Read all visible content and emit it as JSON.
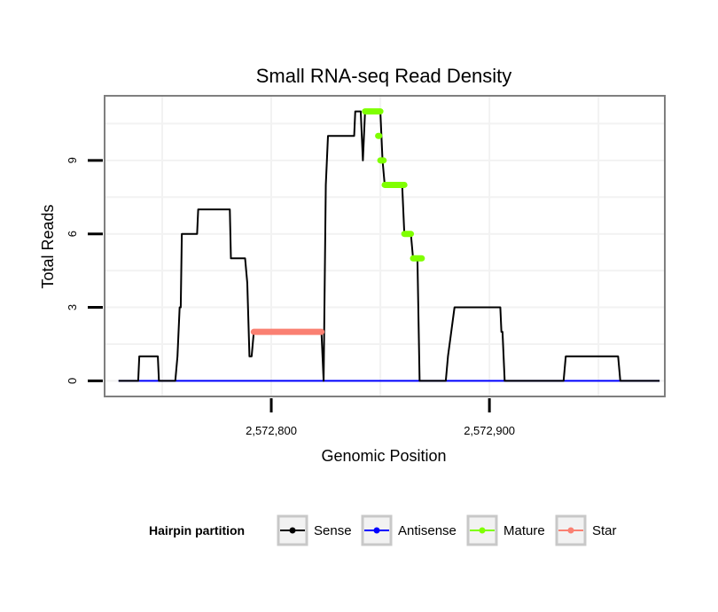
{
  "chart_data": {
    "type": "line",
    "title": "Small RNA-seq Read Density",
    "xlabel": "Genomic Position",
    "ylabel": "Total Reads",
    "xlim": [
      2572724,
      2572980
    ],
    "ylim": [
      -0.6,
      11.6
    ],
    "x_ticks": [
      2572800,
      2572900
    ],
    "x_tick_labels": [
      "2,572,800",
      "2,572,900"
    ],
    "y_ticks": [
      0,
      3,
      6,
      9
    ],
    "y_tick_labels": [
      "0",
      "3",
      "6",
      "9"
    ],
    "grid": true,
    "legend": {
      "title": "Hairpin partition",
      "position": "bottom",
      "entries": [
        "Sense",
        "Antisense",
        "Mature",
        "Star"
      ]
    },
    "colors": {
      "Sense": "#000000",
      "Antisense": "#0000ff",
      "Mature": "#7fff00",
      "Star": "#fa8072"
    },
    "series": [
      {
        "name": "Sense",
        "x": [
          2572730,
          2572739,
          2572739.5,
          2572748,
          2572748.5,
          2572756,
          2572757,
          2572758,
          2572758.5,
          2572759,
          2572759.5,
          2572766,
          2572766.5,
          2572770,
          2572770.5,
          2572781,
          2572781.5,
          2572788,
          2572789,
          2572790,
          2572791,
          2572792,
          2572792.5,
          2572823,
          2572824,
          2572825,
          2572826,
          2572838,
          2572838.5,
          2572841,
          2572842,
          2572843,
          2572843.5,
          2572850,
          2572851,
          2572852,
          2572853,
          2572860,
          2572861,
          2572864,
          2572865,
          2572867,
          2572868,
          2572877,
          2572878,
          2572880,
          2572881,
          2572884,
          2572885,
          2572905,
          2572905.5,
          2572906,
          2572907,
          2572934,
          2572935,
          2572959,
          2572960,
          2572978
        ],
        "y": [
          0,
          0,
          1,
          1,
          0,
          0,
          1,
          3,
          3,
          6,
          6,
          6,
          7,
          7,
          7,
          7,
          5,
          5,
          4,
          1,
          1,
          2,
          2,
          2,
          0,
          8,
          10,
          10,
          11,
          11,
          9,
          11,
          11,
          11,
          9,
          8,
          8,
          8,
          6,
          6,
          5,
          5,
          0,
          0,
          0,
          0,
          1,
          3,
          3,
          3,
          2,
          2,
          0,
          0,
          1,
          1,
          0,
          0
        ]
      },
      {
        "name": "Antisense",
        "x": [
          2572730,
          2572978
        ],
        "y": [
          0,
          0
        ]
      },
      {
        "name": "Mature",
        "segments": [
          {
            "x": [
              2572843,
              2572850
            ],
            "y": 11
          },
          {
            "x": [
              2572849,
              2572849.5
            ],
            "y": 10
          },
          {
            "x": [
              2572850,
              2572851.5
            ],
            "y": 9
          },
          {
            "x": [
              2572852,
              2572861
            ],
            "y": 8
          },
          {
            "x": [
              2572861,
              2572864
            ],
            "y": 6
          },
          {
            "x": [
              2572865,
              2572869
            ],
            "y": 5
          }
        ]
      },
      {
        "name": "Star",
        "segments": [
          {
            "x": [
              2572792,
              2572823
            ],
            "y": 2
          }
        ]
      }
    ]
  }
}
